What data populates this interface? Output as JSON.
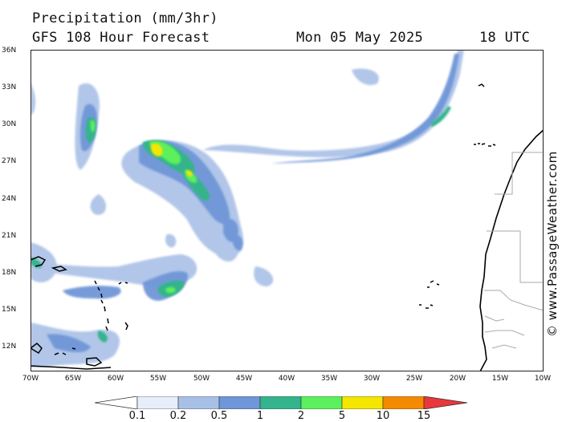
{
  "header": {
    "title": "Precipitation (mm/3hr)",
    "subtitle": "GFS 108 Hour Forecast",
    "date": "Mon 05 May 2025",
    "time": "18 UTC"
  },
  "credit": "© www.PassageWeather.com",
  "axes": {
    "lat_labels": [
      "36N",
      "33N",
      "30N",
      "27N",
      "24N",
      "21N",
      "18N",
      "15N",
      "12N"
    ],
    "lon_labels": [
      "70W",
      "65W",
      "60W",
      "55W",
      "50W",
      "45W",
      "40W",
      "35W",
      "30W",
      "25W",
      "20W",
      "15W",
      "10W"
    ],
    "lat_range": [
      10.5,
      36
    ],
    "lon_range": [
      -70,
      -10
    ]
  },
  "legend": {
    "labels": [
      "0.1",
      "0.2",
      "0.5",
      "1",
      "2",
      "5",
      "10",
      "15"
    ],
    "colors": [
      "#ffffff",
      "#e6eefa",
      "#a9c0e6",
      "#6f96d8",
      "#34b48c",
      "#5cf05c",
      "#f5e600",
      "#f58a00",
      "#e8383c"
    ]
  },
  "colors": {
    "land_fill": "#ffffff",
    "coast": "#000000",
    "border": "#aaaaaa"
  }
}
